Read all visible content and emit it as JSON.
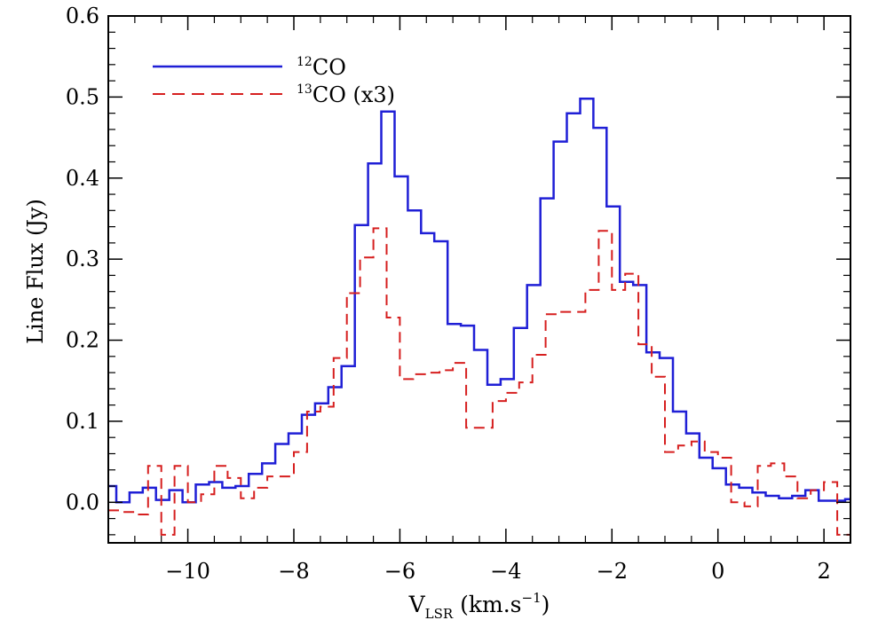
{
  "chart_data": {
    "type": "line",
    "step": true,
    "xlabel_main": "V",
    "xlabel_sub": "LSR",
    "xlabel_units": " (km.s",
    "xlabel_exp": "−1",
    "xlabel_close": ")",
    "ylabel": "Line Flux (Jy)",
    "xlim": [
      -11.5,
      2.5
    ],
    "ylim": [
      -0.05,
      0.6
    ],
    "x_ticks": [
      -10,
      -8,
      -6,
      -4,
      -2,
      0,
      2
    ],
    "x_tick_labels": [
      "−10",
      "−8",
      "−6",
      "−4",
      "−2",
      "0",
      "2"
    ],
    "x_minor_step": 0.5,
    "y_ticks": [
      0.0,
      0.1,
      0.2,
      0.3,
      0.4,
      0.5,
      0.6
    ],
    "y_tick_labels": [
      "0.0",
      "0.1",
      "0.2",
      "0.3",
      "0.4",
      "0.5",
      "0.6"
    ],
    "y_minor_step": 0.02,
    "legend_position": "top-left",
    "series": [
      {
        "name_sup": "12",
        "name": "CO",
        "name_suffix": "",
        "color": "#1f1fd6",
        "dash": "solid",
        "x": [
          -11.5,
          -11.35,
          -11.1,
          -10.85,
          -10.6,
          -10.35,
          -10.1,
          -9.85,
          -9.6,
          -9.35,
          -9.1,
          -8.85,
          -8.6,
          -8.35,
          -8.1,
          -7.85,
          -7.6,
          -7.35,
          -7.1,
          -6.85,
          -6.6,
          -6.35,
          -6.1,
          -5.85,
          -5.6,
          -5.35,
          -5.1,
          -4.85,
          -4.6,
          -4.35,
          -4.1,
          -3.85,
          -3.6,
          -3.35,
          -3.1,
          -2.85,
          -2.6,
          -2.35,
          -2.1,
          -1.85,
          -1.6,
          -1.35,
          -1.1,
          -0.85,
          -0.6,
          -0.35,
          -0.1,
          0.15,
          0.4,
          0.65,
          0.9,
          1.15,
          1.4,
          1.65,
          1.9,
          2.15,
          2.4
        ],
        "y": [
          0.02,
          0.0,
          0.012,
          0.018,
          0.003,
          0.015,
          0.0,
          0.022,
          0.025,
          0.018,
          0.02,
          0.035,
          0.048,
          0.072,
          0.085,
          0.108,
          0.122,
          0.142,
          0.168,
          0.342,
          0.418,
          0.482,
          0.402,
          0.36,
          0.332,
          0.322,
          0.22,
          0.218,
          0.188,
          0.145,
          0.152,
          0.215,
          0.268,
          0.375,
          0.445,
          0.48,
          0.498,
          0.462,
          0.365,
          0.272,
          0.268,
          0.185,
          0.178,
          0.112,
          0.085,
          0.055,
          0.042,
          0.022,
          0.018,
          0.012,
          0.008,
          0.005,
          0.008,
          0.015,
          0.002,
          0.002,
          0.004
        ]
      },
      {
        "name_sup": "13",
        "name": "CO",
        "name_suffix": " (x3)",
        "color": "#d61f1f",
        "dash": "dashed",
        "x": [
          -11.5,
          -11.25,
          -11.0,
          -10.75,
          -10.5,
          -10.25,
          -10.0,
          -9.75,
          -9.5,
          -9.25,
          -9.0,
          -8.75,
          -8.5,
          -8.25,
          -8.0,
          -7.75,
          -7.5,
          -7.25,
          -7.0,
          -6.75,
          -6.5,
          -6.25,
          -6.0,
          -5.75,
          -5.5,
          -5.25,
          -5.0,
          -4.75,
          -4.5,
          -4.25,
          -4.0,
          -3.75,
          -3.5,
          -3.25,
          -3.0,
          -2.75,
          -2.5,
          -2.25,
          -2.0,
          -1.75,
          -1.5,
          -1.25,
          -1.0,
          -0.75,
          -0.5,
          -0.25,
          0.0,
          0.25,
          0.5,
          0.75,
          1.0,
          1.25,
          1.5,
          1.75,
          2.0,
          2.25,
          2.5
        ],
        "y": [
          -0.01,
          -0.012,
          -0.015,
          0.045,
          -0.04,
          0.045,
          0.0,
          0.01,
          0.045,
          0.03,
          0.005,
          0.018,
          0.032,
          0.032,
          0.062,
          0.112,
          0.118,
          0.178,
          0.258,
          0.302,
          0.338,
          0.228,
          0.152,
          0.158,
          0.16,
          0.163,
          0.172,
          0.092,
          0.092,
          0.125,
          0.135,
          0.148,
          0.182,
          0.232,
          0.235,
          0.235,
          0.262,
          0.335,
          0.262,
          0.282,
          0.195,
          0.155,
          0.062,
          0.07,
          0.075,
          0.062,
          0.055,
          0.0,
          -0.005,
          0.045,
          0.048,
          0.032,
          0.005,
          0.015,
          0.025,
          -0.04,
          -0.03
        ]
      }
    ]
  }
}
